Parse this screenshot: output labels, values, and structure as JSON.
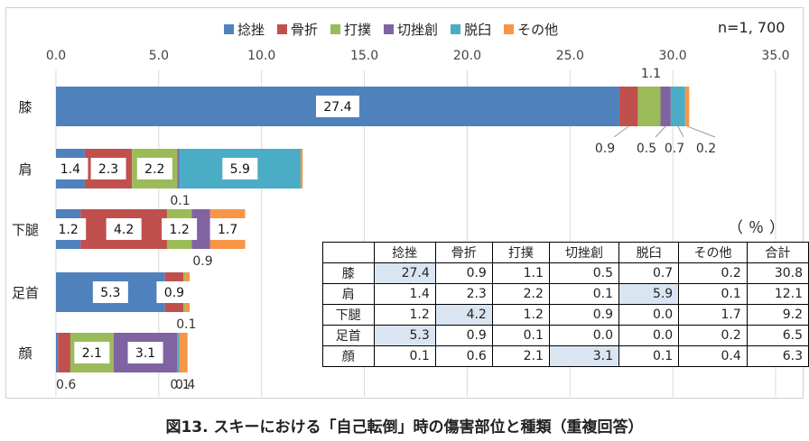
{
  "chart_data": {
    "type": "bar",
    "orientation": "horizontal",
    "stacked": true,
    "note": "n=1, 700",
    "xlim": [
      0,
      35
    ],
    "x_ticks": [
      "0.0",
      "5.0",
      "10.0",
      "15.0",
      "20.0",
      "25.0",
      "30.0",
      "35.0"
    ],
    "legend_position": "top",
    "grid": true,
    "categories": [
      "膝",
      "肩",
      "下腿",
      "足首",
      "顔"
    ],
    "series": [
      {
        "name": "捻挫",
        "color": "#4f81bd",
        "values": [
          27.4,
          1.4,
          1.2,
          5.3,
          0.1
        ]
      },
      {
        "name": "骨折",
        "color": "#c0504d",
        "values": [
          0.9,
          2.3,
          4.2,
          0.9,
          0.6
        ]
      },
      {
        "name": "打撲",
        "color": "#9bbb59",
        "values": [
          1.1,
          2.2,
          1.2,
          0.1,
          2.1
        ]
      },
      {
        "name": "切挫創",
        "color": "#8064a2",
        "values": [
          0.5,
          0.1,
          0.9,
          0.0,
          3.1
        ]
      },
      {
        "name": "脱臼",
        "color": "#4bacc6",
        "values": [
          0.7,
          5.9,
          0.0,
          0.0,
          0.1
        ]
      },
      {
        "name": "その他",
        "color": "#f79646",
        "values": [
          0.2,
          0.1,
          1.7,
          0.2,
          0.4
        ]
      }
    ],
    "bar_labels": [
      {
        "category": 0,
        "series": 0,
        "text": "27.4",
        "style": "inside"
      },
      {
        "category": 0,
        "series": 1,
        "text": "0.9",
        "style": "leader"
      },
      {
        "category": 0,
        "series": 2,
        "text": "1.1",
        "style": "above"
      },
      {
        "category": 0,
        "series": 3,
        "text": "0.5",
        "style": "leader"
      },
      {
        "category": 0,
        "series": 4,
        "text": "0.7",
        "style": "leader"
      },
      {
        "category": 0,
        "series": 5,
        "text": "0.2",
        "style": "leader"
      },
      {
        "category": 1,
        "series": 0,
        "text": "1.4",
        "style": "inside"
      },
      {
        "category": 1,
        "series": 1,
        "text": "2.3",
        "style": "inside"
      },
      {
        "category": 1,
        "series": 2,
        "text": "2.2",
        "style": "inside"
      },
      {
        "category": 1,
        "series": 3,
        "text": "0.1",
        "style": "below"
      },
      {
        "category": 1,
        "series": 4,
        "text": "5.9",
        "style": "inside"
      },
      {
        "category": 2,
        "series": 0,
        "text": "1.2",
        "style": "inside"
      },
      {
        "category": 2,
        "series": 1,
        "text": "4.2",
        "style": "inside"
      },
      {
        "category": 2,
        "series": 2,
        "text": "1.2",
        "style": "inside"
      },
      {
        "category": 2,
        "series": 3,
        "text": "0.9",
        "style": "below"
      },
      {
        "category": 2,
        "series": 5,
        "text": "1.7",
        "style": "inside"
      },
      {
        "category": 3,
        "series": 0,
        "text": "5.3",
        "style": "inside"
      },
      {
        "category": 3,
        "series": 1,
        "text": "0.9",
        "style": "inside"
      },
      {
        "category": 3,
        "series": 2,
        "text": "0.1",
        "style": "below"
      },
      {
        "category": 4,
        "series": 1,
        "text": "0.6",
        "style": "below"
      },
      {
        "category": 4,
        "series": 2,
        "text": "2.1",
        "style": "inside"
      },
      {
        "category": 4,
        "series": 3,
        "text": "3.1",
        "style": "inside"
      },
      {
        "category": 4,
        "series": 4,
        "text": "0.1",
        "style": "below"
      },
      {
        "category": 4,
        "series": 5,
        "text": "0.4",
        "style": "below"
      }
    ]
  },
  "table": {
    "unit": "（％）",
    "headers": [
      "",
      "捻挫",
      "骨折",
      "打撲",
      "切挫創",
      "脱臼",
      "その他",
      "合計"
    ],
    "rows": [
      {
        "label": "膝",
        "cells": [
          "27.4",
          "0.9",
          "1.1",
          "0.5",
          "0.7",
          "0.2",
          "30.8"
        ],
        "highlight": 0
      },
      {
        "label": "肩",
        "cells": [
          "1.4",
          "2.3",
          "2.2",
          "0.1",
          "5.9",
          "0.1",
          "12.1"
        ],
        "highlight": 4
      },
      {
        "label": "下腿",
        "cells": [
          "1.2",
          "4.2",
          "1.2",
          "0.9",
          "0.0",
          "1.7",
          "9.2"
        ],
        "highlight": 1
      },
      {
        "label": "足首",
        "cells": [
          "5.3",
          "0.9",
          "0.1",
          "0.0",
          "0.0",
          "0.2",
          "6.5"
        ],
        "highlight": 0
      },
      {
        "label": "顔",
        "cells": [
          "0.1",
          "0.6",
          "2.1",
          "3.1",
          "0.1",
          "0.4",
          "6.3"
        ],
        "highlight": 3
      }
    ]
  },
  "caption": "図13. スキーにおける「自己転倒」時の傷害部位と種類（重複回答）"
}
